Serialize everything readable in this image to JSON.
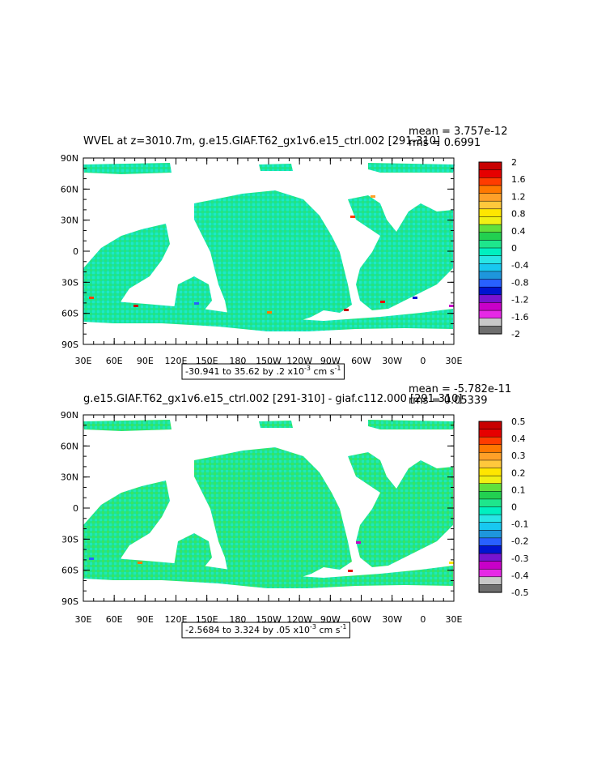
{
  "panels": [
    {
      "id": "top",
      "title": "WVEL at z=3010.7m, g.e15.GIAF.T62_gx1v6.e15_ctrl.002 [291-310]",
      "stat_mean": "mean = 3.757e-12",
      "stat_rms": "rms = 0.6991",
      "range_label": "-30.941 to 35.62 by .2 x10",
      "units_exp": "-3",
      "units_tail": " cm s",
      "units_tail_exp": "-1",
      "colorbar_labels": [
        "2",
        "1.6",
        "1.2",
        "0.8",
        "0.4",
        "0",
        "-0.4",
        "-0.8",
        "-1.2",
        "-1.6",
        "-2"
      ]
    },
    {
      "id": "bottom",
      "title": "g.e15.GIAF.T62_gx1v6.e15_ctrl.002 [291-310] - giaf.c112.000 [291-310]",
      "stat_mean": "mean = -5.782e-11",
      "stat_rms": "rms = 0.05339",
      "range_label": "-2.5684 to 3.324 by .05 x10",
      "units_exp": "-3",
      "units_tail": " cm s",
      "units_tail_exp": "-1",
      "colorbar_labels": [
        "0.5",
        "0.4",
        "0.3",
        "0.2",
        "0.1",
        "0",
        "-0.1",
        "-0.2",
        "-0.3",
        "-0.4",
        "-0.5"
      ]
    }
  ],
  "lat_labels": [
    "90N",
    "60N",
    "30N",
    "0",
    "30S",
    "60S",
    "90S"
  ],
  "lon_labels": [
    "30E",
    "60E",
    "90E",
    "120E",
    "150E",
    "180",
    "150W",
    "120W",
    "90W",
    "60W",
    "30W",
    "0",
    "30E"
  ],
  "colorbar_colors": [
    "#c80000",
    "#e60000",
    "#ff3c00",
    "#ff7800",
    "#ffa028",
    "#ffc83c",
    "#ffe600",
    "#f0f014",
    "#60e03c",
    "#22d050",
    "#1ee68c",
    "#00f0c0",
    "#28e6e6",
    "#18c8f0",
    "#1e96dc",
    "#2860ff",
    "#0014d0",
    "#7814d0",
    "#c800c8",
    "#e628e6",
    "#c8c8c8",
    "#6e6e6e"
  ],
  "field_colors": {
    "ocean_main": "#00e6a0",
    "ocean_alt": "#28e6e6",
    "ocean_alt2": "#3cdc5a"
  }
}
